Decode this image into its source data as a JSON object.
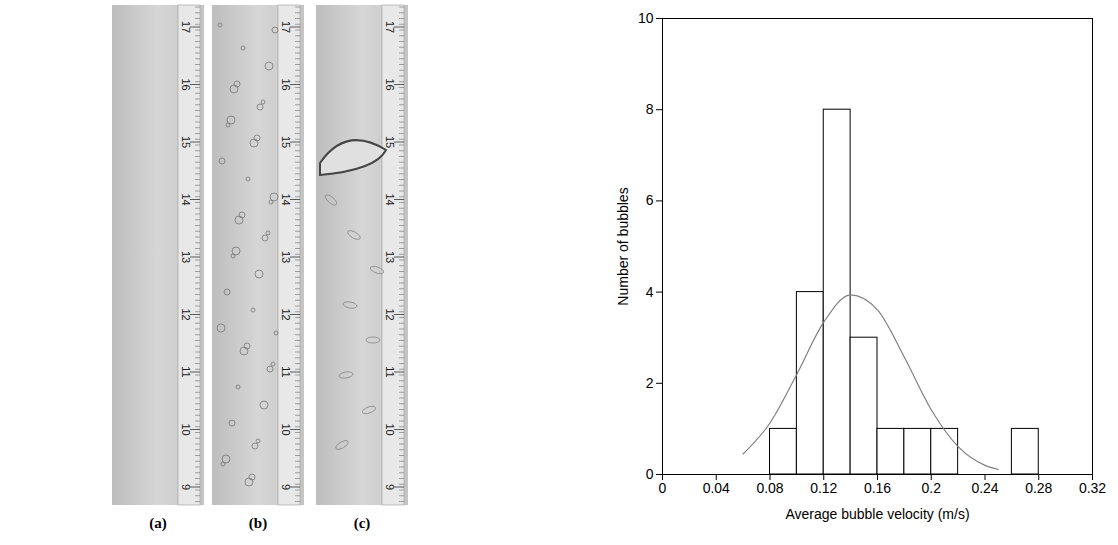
{
  "chart_data": {
    "type": "histogram",
    "xlabel": "Average bubble velocity (m/s)",
    "ylabel": "Number of bubbles",
    "bins": [
      0.08,
      0.1,
      0.12,
      0.14,
      0.16,
      0.18,
      0.2,
      0.22,
      0.24,
      0.26,
      0.28
    ],
    "counts": [
      1,
      4,
      8,
      3,
      1,
      1,
      1,
      0,
      0,
      1
    ],
    "color": "#ffffff",
    "curve": {
      "type": "line",
      "color": "#808080",
      "x": [
        0.06,
        0.08,
        0.1,
        0.12,
        0.14,
        0.16,
        0.18,
        0.2,
        0.22,
        0.24,
        0.25
      ],
      "values": [
        0.45,
        1.13,
        2.2,
        3.34,
        3.94,
        3.61,
        2.57,
        1.42,
        0.61,
        0.2,
        0.11
      ]
    },
    "xlim": [
      0,
      0.32
    ],
    "xticks": [
      0,
      0.04,
      0.08,
      0.12,
      0.16,
      0.2,
      0.24,
      0.28,
      0.32
    ],
    "ylim": [
      0,
      10
    ],
    "yticks": [
      0,
      2,
      4,
      6,
      8,
      10
    ],
    "grid": false
  },
  "photos": {
    "labels": [
      "(a)",
      "(b)",
      "(c)"
    ],
    "ruler_labels": [
      17,
      16,
      15,
      14,
      13,
      12,
      11,
      10,
      9
    ]
  }
}
